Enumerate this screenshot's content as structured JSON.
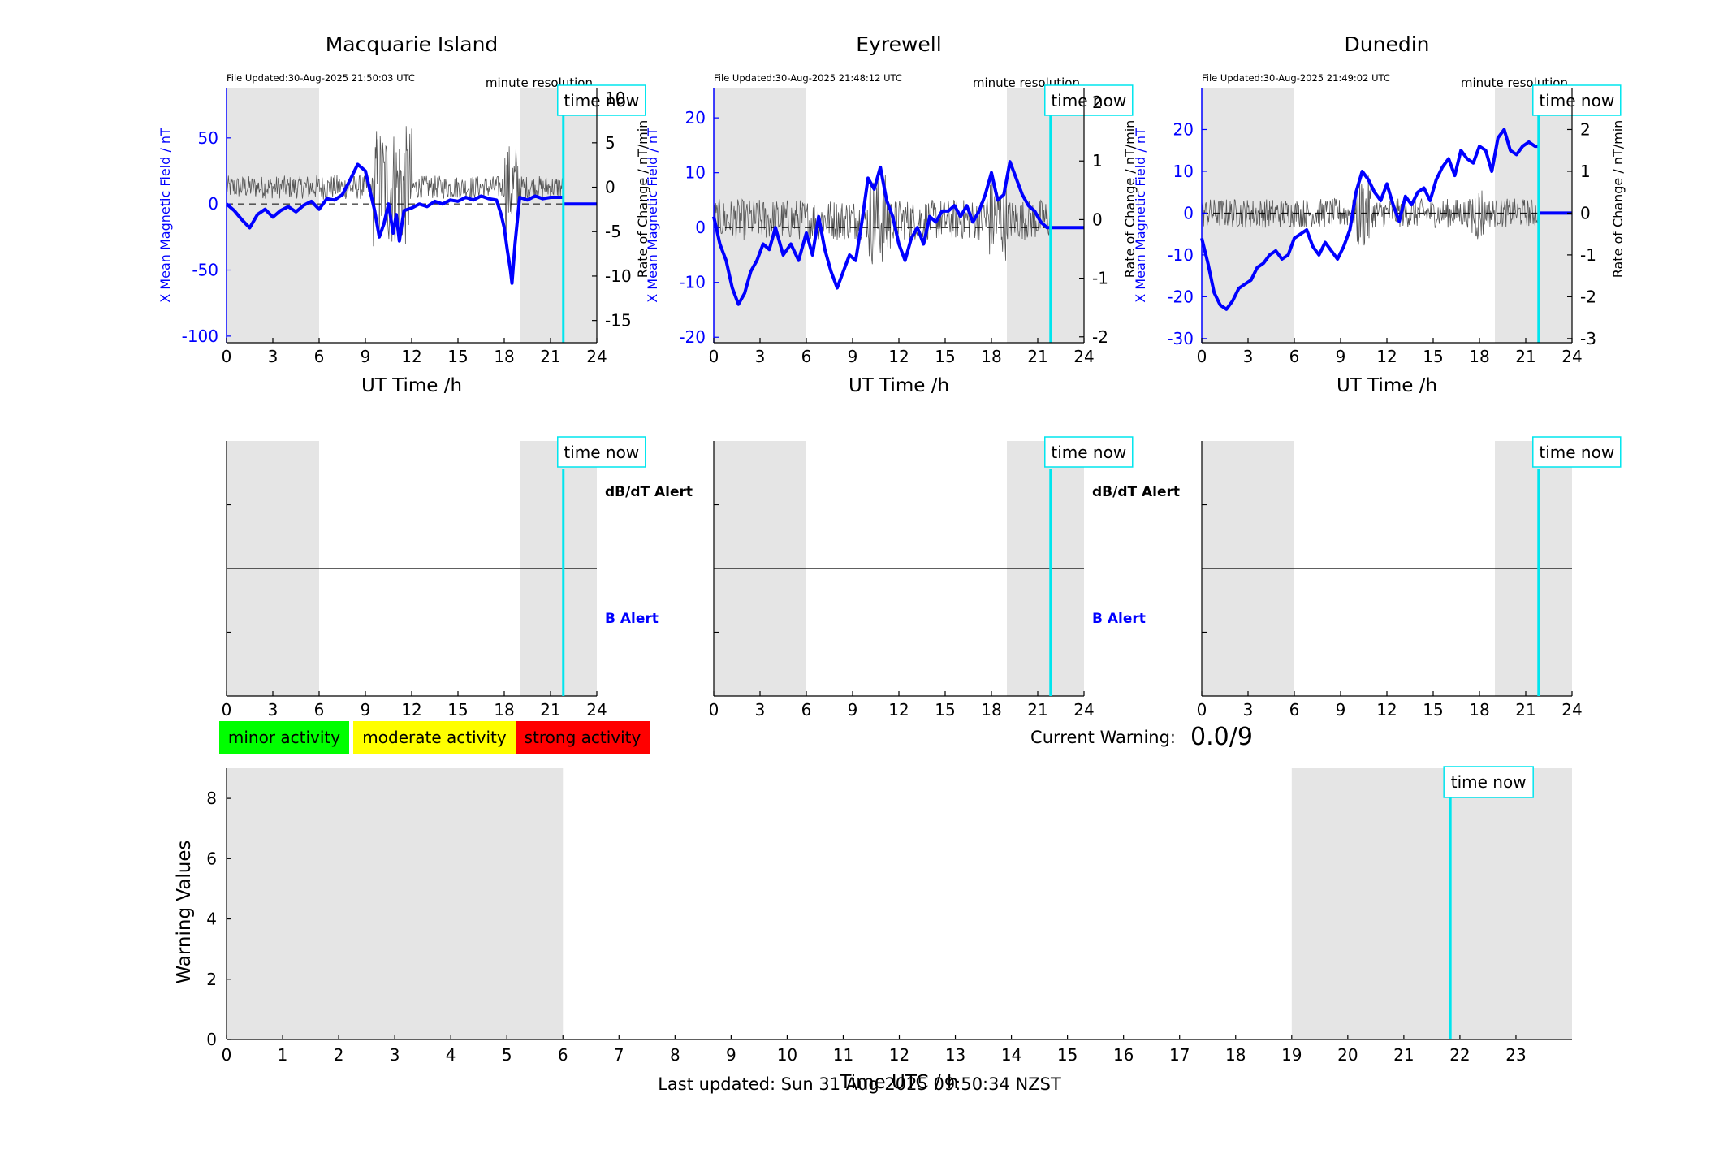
{
  "panels": [
    {
      "title": "Macquarie Island",
      "file_updated": "File Updated:30-Aug-2025 21:50:03 UTC",
      "resolution": "minute resolution",
      "time_now_label": "time now",
      "left_axis_label": "X Mean Magnetic Field / nT",
      "right_axis_label": "Rate of Change / nT/min",
      "x_axis_label": "UT Time /h",
      "left_ticks": [
        50,
        0,
        -50,
        -100
      ],
      "left_ylim": [
        -105,
        88
      ],
      "right_ticks": [
        10,
        5,
        0,
        -5,
        -10,
        -15
      ],
      "right_ylim": [
        -17.5,
        11.2
      ],
      "x_ticks": [
        0,
        3,
        6,
        9,
        12,
        15,
        18,
        21,
        24
      ],
      "alert_db_label": "dB/dT Alert",
      "alert_b_label": "B Alert"
    },
    {
      "title": "Eyrewell",
      "file_updated": "File Updated:30-Aug-2025 21:48:12 UTC",
      "resolution": "minute resolution",
      "time_now_label": "time now",
      "left_axis_label": "X Mean Magnetic Field / nT",
      "right_axis_label": "Rate of Change / nT/min",
      "x_axis_label": "UT Time /h",
      "left_ticks": [
        20,
        10,
        0,
        -10,
        -20
      ],
      "left_ylim": [
        -21,
        25.5
      ],
      "right_ticks": [
        2,
        1,
        0,
        -1,
        -2
      ],
      "right_ylim": [
        -2.1,
        2.25
      ],
      "x_ticks": [
        0,
        3,
        6,
        9,
        12,
        15,
        18,
        21,
        24
      ],
      "alert_db_label": "dB/dT Alert",
      "alert_b_label": "B Alert"
    },
    {
      "title": "Dunedin",
      "file_updated": "File Updated:30-Aug-2025 21:49:02 UTC",
      "resolution": "minute resolution",
      "time_now_label": "time now",
      "left_axis_label": "X Mean Magnetic Field / nT",
      "right_axis_label": "Rate of Change / nT/min",
      "x_axis_label": "UT Time /h",
      "left_ticks": [
        20,
        10,
        0,
        -10,
        -20,
        -30
      ],
      "left_ylim": [
        -31,
        30
      ],
      "right_ticks": [
        2,
        1,
        0,
        -1,
        -2,
        -3
      ],
      "right_ylim": [
        -3.1,
        3.0
      ],
      "x_ticks": [
        0,
        3,
        6,
        9,
        12,
        15,
        18,
        21,
        24
      ],
      "alert_db_label": "",
      "alert_b_label": ""
    }
  ],
  "legend": [
    {
      "label": "minor activity",
      "color": "#00ff00"
    },
    {
      "label": "moderate activity",
      "color": "#ffff00"
    },
    {
      "label": "strong activity",
      "color": "#ff0000"
    }
  ],
  "current_warning": {
    "label": "Current Warning:",
    "value": "0.0/9"
  },
  "warning_chart": {
    "ylabel": "Warning Values",
    "xlabel": "Time UTC / h",
    "time_now_label": "time now",
    "y_ticks": [
      0,
      2,
      4,
      6,
      8
    ],
    "ylim": [
      0,
      9
    ],
    "x_ticks": [
      0,
      1,
      2,
      3,
      4,
      5,
      6,
      7,
      8,
      9,
      10,
      11,
      12,
      13,
      14,
      15,
      16,
      17,
      18,
      19,
      20,
      21,
      22,
      23
    ],
    "xlim": [
      0,
      24
    ]
  },
  "chart_data": [
    {
      "type": "line",
      "title": "Macquarie Island",
      "xlabel": "UT Time /h",
      "ylabel": "X Mean Magnetic Field / nT",
      "y2label": "Rate of Change / nT/min",
      "xlim": [
        0,
        24
      ],
      "night_shading_h": [
        [
          0,
          6
        ],
        [
          19,
          24
        ]
      ],
      "time_now_h": 21.83,
      "series": [
        {
          "color": "#0000ff",
          "axis": "left",
          "points": [
            [
              0,
              0
            ],
            [
              0.5,
              -5
            ],
            [
              1,
              -12
            ],
            [
              1.5,
              -18
            ],
            [
              2,
              -8
            ],
            [
              2.5,
              -4
            ],
            [
              3,
              -10
            ],
            [
              3.5,
              -5
            ],
            [
              4,
              -2
            ],
            [
              4.5,
              -6
            ],
            [
              5,
              -1
            ],
            [
              5.5,
              2
            ],
            [
              6,
              -4
            ],
            [
              6.5,
              4
            ],
            [
              7,
              3
            ],
            [
              7.5,
              7
            ],
            [
              8,
              18
            ],
            [
              8.5,
              30
            ],
            [
              9,
              25
            ],
            [
              9.3,
              10
            ],
            [
              9.6,
              -5
            ],
            [
              9.9,
              -25
            ],
            [
              10.2,
              -15
            ],
            [
              10.5,
              0
            ],
            [
              10.8,
              -22
            ],
            [
              11,
              -8
            ],
            [
              11.2,
              -28
            ],
            [
              11.5,
              -5
            ],
            [
              12,
              -3
            ],
            [
              12.5,
              0
            ],
            [
              13,
              -2
            ],
            [
              13.5,
              2
            ],
            [
              14,
              0
            ],
            [
              14.5,
              3
            ],
            [
              15,
              2
            ],
            [
              15.5,
              5
            ],
            [
              16,
              3
            ],
            [
              16.5,
              6
            ],
            [
              17,
              4
            ],
            [
              17.5,
              3
            ],
            [
              17.8,
              -8
            ],
            [
              18,
              -18
            ],
            [
              18.2,
              -35
            ],
            [
              18.4,
              -50
            ],
            [
              18.5,
              -60
            ],
            [
              18.7,
              -30
            ],
            [
              19,
              5
            ],
            [
              19.5,
              3
            ],
            [
              20,
              6
            ],
            [
              20.5,
              4
            ],
            [
              21,
              5
            ],
            [
              21.5,
              5
            ],
            [
              21.83,
              5
            ]
          ]
        },
        {
          "color": "#0000ff",
          "axis": "left",
          "name": "",
          "points": [
            [
              21.83,
              0
            ],
            [
              24,
              0
            ]
          ]
        }
      ]
    },
    {
      "type": "line",
      "title": "Eyrewell",
      "xlabel": "UT Time /h",
      "ylabel": "X Mean Magnetic Field / nT",
      "y2label": "Rate of Change / nT/min",
      "xlim": [
        0,
        24
      ],
      "night_shading_h": [
        [
          0,
          6
        ],
        [
          19,
          24
        ]
      ],
      "time_now_h": 21.83,
      "series": [
        {
          "color": "#0000ff",
          "axis": "left",
          "points": [
            [
              0,
              2
            ],
            [
              0.4,
              -3
            ],
            [
              0.8,
              -6
            ],
            [
              1.2,
              -11
            ],
            [
              1.6,
              -14
            ],
            [
              2,
              -12
            ],
            [
              2.4,
              -8
            ],
            [
              2.8,
              -6
            ],
            [
              3.2,
              -3
            ],
            [
              3.6,
              -4
            ],
            [
              4,
              0
            ],
            [
              4.5,
              -5
            ],
            [
              5,
              -3
            ],
            [
              5.5,
              -6
            ],
            [
              6,
              -1
            ],
            [
              6.4,
              -5
            ],
            [
              6.8,
              2
            ],
            [
              7.2,
              -4
            ],
            [
              7.6,
              -8
            ],
            [
              8,
              -11
            ],
            [
              8.4,
              -8
            ],
            [
              8.8,
              -5
            ],
            [
              9.2,
              -6
            ],
            [
              9.6,
              1
            ],
            [
              10,
              9
            ],
            [
              10.4,
              7
            ],
            [
              10.8,
              11
            ],
            [
              11.2,
              5
            ],
            [
              11.6,
              2
            ],
            [
              12,
              -3
            ],
            [
              12.4,
              -6
            ],
            [
              12.8,
              -2
            ],
            [
              13.2,
              0
            ],
            [
              13.6,
              -3
            ],
            [
              14,
              2
            ],
            [
              14.4,
              1
            ],
            [
              14.8,
              3
            ],
            [
              15.2,
              3
            ],
            [
              15.6,
              4
            ],
            [
              16,
              2
            ],
            [
              16.4,
              4
            ],
            [
              16.8,
              1
            ],
            [
              17.2,
              3
            ],
            [
              17.6,
              6
            ],
            [
              18,
              10
            ],
            [
              18.4,
              5
            ],
            [
              18.8,
              6
            ],
            [
              19.2,
              12
            ],
            [
              19.6,
              9
            ],
            [
              20,
              6
            ],
            [
              20.4,
              4
            ],
            [
              20.8,
              3
            ],
            [
              21.2,
              1
            ],
            [
              21.6,
              0
            ],
            [
              21.83,
              0
            ]
          ]
        },
        {
          "color": "#0000ff",
          "axis": "left",
          "name": "",
          "points": [
            [
              21.83,
              0
            ],
            [
              24,
              0
            ]
          ]
        }
      ]
    },
    {
      "type": "line",
      "title": "Dunedin",
      "xlabel": "UT Time /h",
      "ylabel": "X Mean Magnetic Field / nT",
      "y2label": "Rate of Change / nT/min",
      "xlim": [
        0,
        24
      ],
      "night_shading_h": [
        [
          0,
          6
        ],
        [
          19,
          24
        ]
      ],
      "time_now_h": 21.83,
      "series": [
        {
          "color": "#0000ff",
          "axis": "left",
          "points": [
            [
              0,
              -6
            ],
            [
              0.4,
              -12
            ],
            [
              0.8,
              -19
            ],
            [
              1.2,
              -22
            ],
            [
              1.6,
              -23
            ],
            [
              2,
              -21
            ],
            [
              2.4,
              -18
            ],
            [
              2.8,
              -17
            ],
            [
              3.2,
              -16
            ],
            [
              3.6,
              -13
            ],
            [
              4,
              -12
            ],
            [
              4.4,
              -10
            ],
            [
              4.8,
              -9
            ],
            [
              5.2,
              -11
            ],
            [
              5.6,
              -10
            ],
            [
              6,
              -6
            ],
            [
              6.4,
              -5
            ],
            [
              6.8,
              -4
            ],
            [
              7.2,
              -8
            ],
            [
              7.6,
              -10
            ],
            [
              8,
              -7
            ],
            [
              8.4,
              -9
            ],
            [
              8.8,
              -11
            ],
            [
              9.2,
              -8
            ],
            [
              9.6,
              -4
            ],
            [
              10,
              5
            ],
            [
              10.4,
              10
            ],
            [
              10.8,
              8
            ],
            [
              11.2,
              5
            ],
            [
              11.6,
              3
            ],
            [
              12,
              7
            ],
            [
              12.4,
              2
            ],
            [
              12.8,
              -2
            ],
            [
              13.2,
              4
            ],
            [
              13.6,
              2
            ],
            [
              14,
              5
            ],
            [
              14.4,
              6
            ],
            [
              14.8,
              3
            ],
            [
              15.2,
              8
            ],
            [
              15.6,
              11
            ],
            [
              16,
              13
            ],
            [
              16.4,
              9
            ],
            [
              16.8,
              15
            ],
            [
              17.2,
              13
            ],
            [
              17.6,
              12
            ],
            [
              18,
              16
            ],
            [
              18.4,
              15
            ],
            [
              18.8,
              10
            ],
            [
              19.2,
              18
            ],
            [
              19.6,
              20
            ],
            [
              20,
              15
            ],
            [
              20.4,
              14
            ],
            [
              20.8,
              16
            ],
            [
              21.2,
              17
            ],
            [
              21.6,
              16
            ],
            [
              21.83,
              16
            ]
          ]
        },
        {
          "color": "#0000ff",
          "axis": "left",
          "name": "",
          "points": [
            [
              21.83,
              0
            ],
            [
              24,
              0
            ]
          ]
        }
      ]
    },
    {
      "type": "line",
      "title": "",
      "xlabel": "Time UTC / h",
      "ylabel": "Warning Values",
      "xlim": [
        0,
        24
      ],
      "ylim": [
        0,
        9
      ],
      "night_shading_h": [
        [
          0,
          6
        ],
        [
          19,
          24
        ]
      ],
      "time_now_h": 21.83,
      "series": []
    }
  ],
  "footer": "Last updated: Sun 31 Aug 2025 09:50:34 NZST"
}
